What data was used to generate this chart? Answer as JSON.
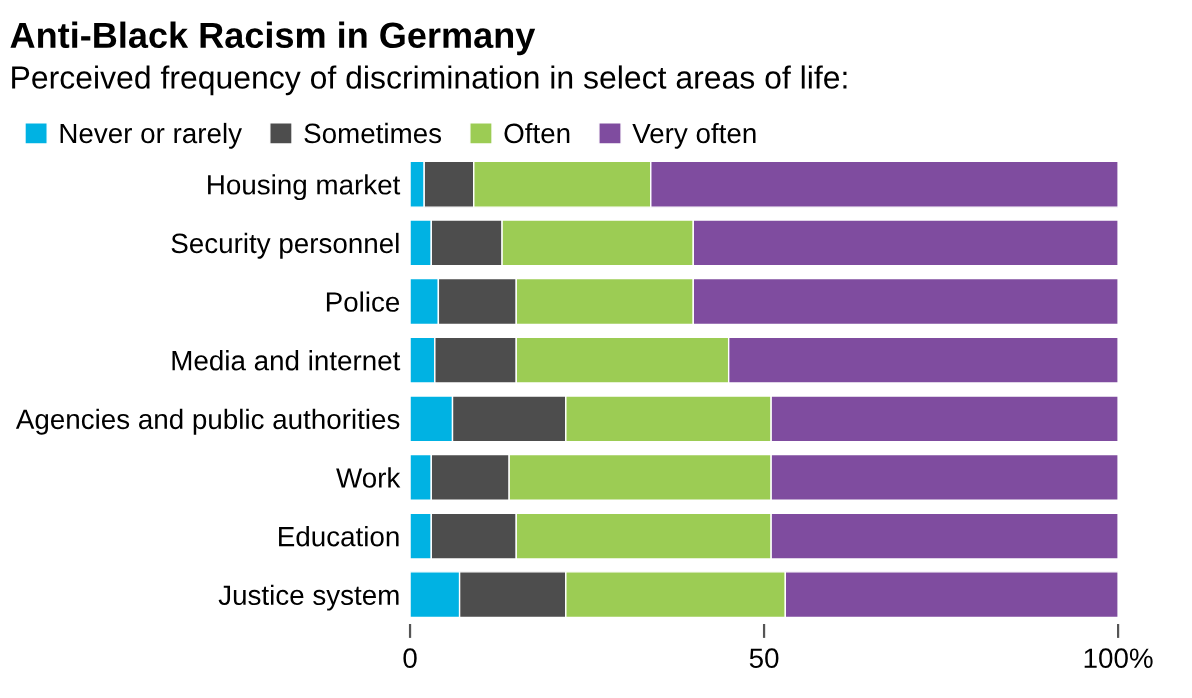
{
  "chart_data": {
    "type": "bar",
    "orientation": "horizontal",
    "stacked": true,
    "title": "Anti-Black Racism in Germany",
    "subtitle": "Perceived frequency of discrimination in select areas of life:",
    "categories": [
      "Housing market",
      "Security personnel",
      "Police",
      "Media and internet",
      "Agencies and public authorities",
      "Work",
      "Education",
      "Justice system"
    ],
    "series": [
      {
        "name": "Never or rarely",
        "color": "#00b2e3",
        "values": [
          2,
          3,
          4,
          3.5,
          6,
          3,
          3,
          7
        ]
      },
      {
        "name": "Sometimes",
        "color": "#4d4d4d",
        "values": [
          7,
          10,
          11,
          11.5,
          16,
          11,
          12,
          15
        ]
      },
      {
        "name": "Often",
        "color": "#9ccc54",
        "values": [
          25,
          27,
          25,
          30,
          29,
          37,
          36,
          31
        ]
      },
      {
        "name": "Very often",
        "color": "#7f4c9f",
        "values": [
          66,
          60,
          60,
          55,
          49,
          49,
          49,
          47
        ]
      }
    ],
    "xlim": [
      0,
      100
    ],
    "xticks": [
      0,
      50,
      {
        "value": 100,
        "label": "100%"
      }
    ],
    "grid": false,
    "legend": "top left"
  }
}
